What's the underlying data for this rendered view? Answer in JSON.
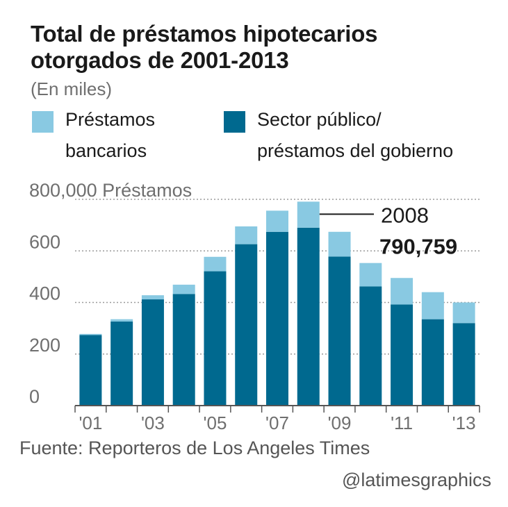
{
  "title_line1": "Total de préstamos hipotecarios",
  "title_line2": "otorgados de 2001-2013",
  "subtitle": "(En miles)",
  "legend": [
    {
      "label_line1": "Préstamos",
      "label_line2": "bancarios",
      "color": "#89c9e2"
    },
    {
      "label_line1": "Sector público/",
      "label_line2": "préstamos del gobierno",
      "color": "#00698f"
    }
  ],
  "source": "Fuente: Reporteros de Los Angeles Times",
  "credit": "@latimesgraphics",
  "chart_data": {
    "type": "bar",
    "stacked": true,
    "categories": [
      "2001",
      "2002",
      "2003",
      "2004",
      "2005",
      "2006",
      "2007",
      "2008",
      "2009",
      "2010",
      "2011",
      "2012",
      "2013"
    ],
    "x_tick_labels": [
      "'01",
      "",
      "'03",
      "",
      "'05",
      "",
      "'07",
      "",
      "'09",
      "",
      "'11",
      "",
      "'13"
    ],
    "series": [
      {
        "name": "Sector público/ préstamos del gobierno",
        "color": "#00698f",
        "values": [
          274,
          326,
          412,
          433,
          521,
          626,
          674,
          690,
          578,
          462,
          392,
          335,
          320
        ]
      },
      {
        "name": "Préstamos bancarios",
        "color": "#89c9e2",
        "values": [
          4,
          9,
          16,
          36,
          56,
          69,
          82,
          101,
          96,
          91,
          103,
          105,
          80
        ]
      }
    ],
    "ylim": [
      0,
      800000
    ],
    "y_ticks": [
      0,
      200,
      400,
      600,
      800
    ],
    "y_tick_labels": [
      "0",
      "200",
      "400",
      "600",
      "800,000 Préstamos"
    ],
    "grid": true,
    "annotation": {
      "year_label": "2008",
      "value_label": "790,759",
      "category": "2008"
    },
    "legend_position": "top"
  }
}
